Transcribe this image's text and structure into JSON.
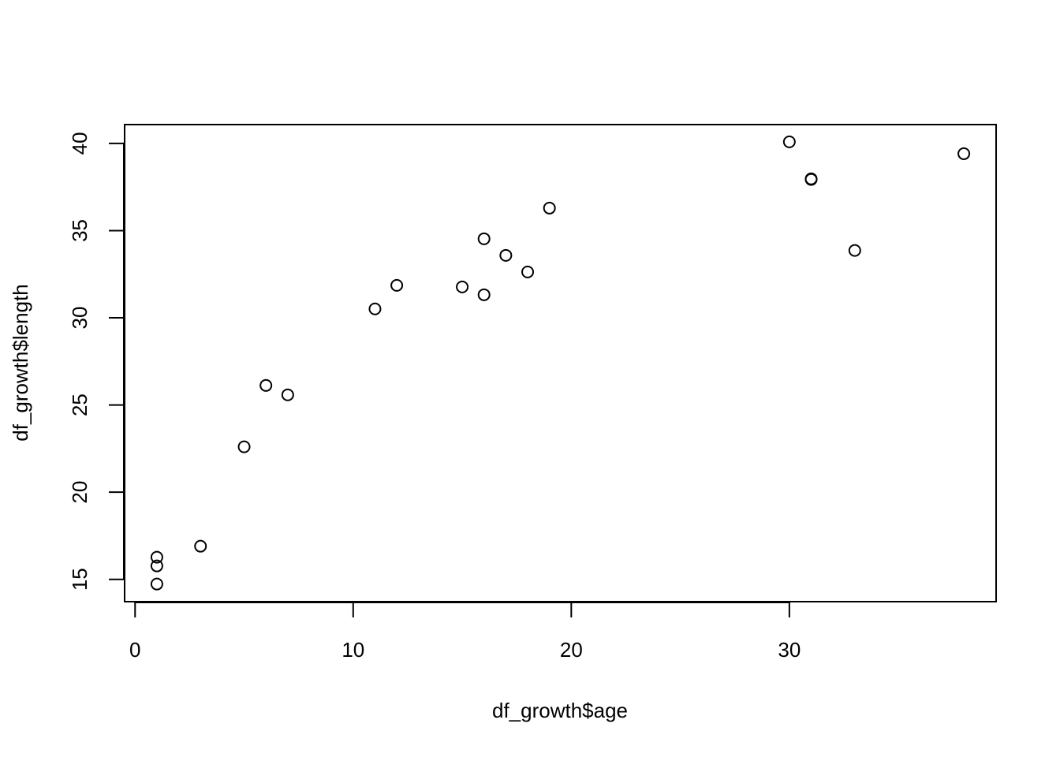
{
  "chart_data": {
    "type": "scatter",
    "x_label": "df_growth$age",
    "y_label": "df_growth$length",
    "x": [
      1,
      1,
      1,
      3,
      5,
      6,
      7,
      11,
      12,
      15,
      16,
      16,
      17,
      18,
      19,
      30,
      31,
      31,
      33,
      38
    ],
    "values": [
      14.73,
      15.77,
      16.27,
      16.9,
      22.6,
      26.12,
      25.58,
      30.51,
      31.86,
      31.77,
      34.53,
      31.32,
      33.58,
      32.63,
      36.29,
      40.09,
      37.97,
      37.93,
      33.86,
      39.41
    ],
    "color": "#000000",
    "xlim": [
      -0.48,
      39.48
    ],
    "xticks": [
      0,
      10,
      20,
      30
    ],
    "ylim": [
      13.72,
      41.08
    ],
    "yticks": [
      15,
      20,
      25,
      30,
      35,
      40
    ],
    "grid": false
  }
}
